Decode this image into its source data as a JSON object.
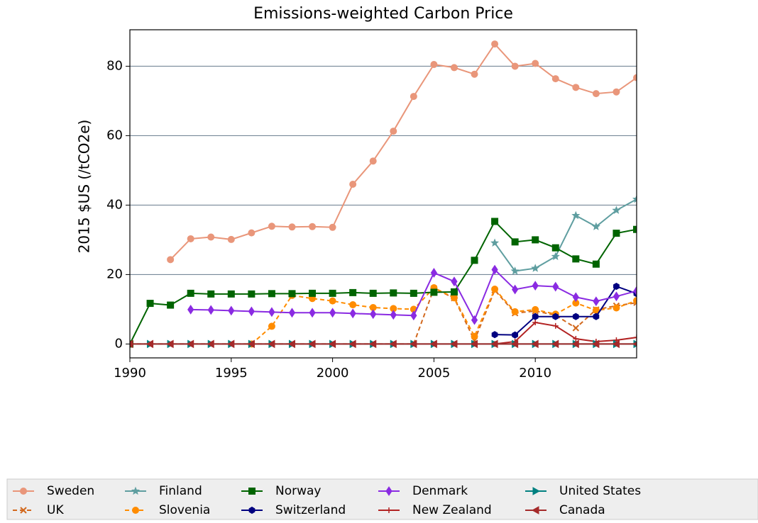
{
  "chart_data": {
    "type": "line",
    "title": "Emissions-weighted Carbon Price",
    "y_label": "2015 $US (/tCO2e)",
    "x": [
      1990,
      1991,
      1992,
      1993,
      1994,
      1995,
      1996,
      1997,
      1998,
      1999,
      2000,
      2001,
      2002,
      2003,
      2004,
      2005,
      2006,
      2007,
      2008,
      2009,
      2010,
      2011,
      2012,
      2013,
      2014,
      2015
    ],
    "xlim": [
      1990,
      2015
    ],
    "xticks": [
      1990,
      1995,
      2000,
      2005,
      2010
    ],
    "ylim": [
      -4,
      90.5
    ],
    "yticks": [
      0,
      20,
      40,
      60,
      80
    ],
    "grid": true,
    "legend": "bottom",
    "series": [
      {
        "name": "Sweden",
        "color": "#e9967a",
        "marker": "circle",
        "dashed": false,
        "values": [
          null,
          null,
          24.3,
          30.3,
          30.8,
          30.1,
          32.0,
          33.9,
          33.7,
          33.8,
          33.6,
          46.0,
          52.7,
          61.3,
          71.3,
          80.5,
          79.6,
          77.7,
          86.4,
          80.0,
          80.8,
          76.4,
          73.9,
          72.1,
          72.6,
          76.7
        ]
      },
      {
        "name": "UK",
        "color": "#d2691e",
        "marker": "x",
        "dashed": true,
        "values": [
          0,
          0,
          0,
          0,
          0,
          0,
          0,
          0,
          0,
          0,
          0,
          0,
          0,
          0,
          0,
          16.0,
          13.2,
          1.0,
          15.5,
          8.9,
          9.5,
          8.3,
          4.6,
          9.9,
          11.0,
          11.9
        ]
      },
      {
        "name": "Finland",
        "color": "#5f9ea0",
        "marker": "star",
        "dashed": false,
        "values": [
          null,
          null,
          null,
          null,
          null,
          null,
          null,
          null,
          null,
          null,
          null,
          null,
          null,
          null,
          null,
          null,
          null,
          null,
          29.1,
          21.0,
          21.8,
          25.2,
          37.0,
          33.8,
          38.5,
          41.7
        ]
      },
      {
        "name": "Slovenia",
        "color": "#ff8c00",
        "marker": "circle",
        "dashed": true,
        "values": [
          null,
          null,
          null,
          null,
          null,
          null,
          0,
          5.1,
          14.0,
          13.1,
          12.4,
          11.3,
          10.5,
          10.2,
          10.0,
          16.2,
          13.3,
          2.2,
          15.8,
          9.3,
          9.9,
          8.6,
          11.8,
          9.7,
          10.4,
          12.5
        ]
      },
      {
        "name": "Norway",
        "color": "#006400",
        "marker": "square",
        "dashed": false,
        "values": [
          0,
          11.7,
          11.2,
          14.6,
          14.4,
          14.4,
          14.4,
          14.5,
          14.5,
          14.6,
          14.6,
          14.8,
          14.6,
          14.7,
          14.6,
          14.9,
          15.0,
          24.1,
          35.3,
          29.4,
          30.0,
          27.7,
          24.5,
          23.0,
          31.9,
          33.0
        ]
      },
      {
        "name": "Switzerland",
        "color": "#000080",
        "marker": "hexagon",
        "dashed": false,
        "values": [
          null,
          null,
          null,
          null,
          null,
          null,
          null,
          null,
          null,
          null,
          null,
          null,
          null,
          null,
          null,
          null,
          null,
          null,
          2.7,
          2.6,
          7.9,
          7.9,
          7.9,
          7.9,
          16.6,
          14.5
        ]
      },
      {
        "name": "Denmark",
        "color": "#8a2be2",
        "marker": "diamond",
        "dashed": false,
        "values": [
          null,
          null,
          null,
          9.9,
          9.8,
          9.6,
          9.4,
          9.2,
          9.0,
          9.0,
          9.0,
          8.8,
          8.6,
          8.4,
          8.2,
          20.5,
          18.0,
          6.9,
          21.4,
          15.7,
          16.8,
          16.5,
          13.5,
          12.3,
          13.7,
          15.3
        ]
      },
      {
        "name": "New Zealand",
        "color": "#b22222",
        "marker": "plus",
        "dashed": false,
        "values": [
          null,
          null,
          null,
          null,
          null,
          null,
          null,
          null,
          null,
          null,
          null,
          null,
          null,
          null,
          null,
          null,
          null,
          null,
          0,
          0.7,
          6.2,
          5.2,
          1.5,
          0.7,
          1.1,
          1.9
        ]
      },
      {
        "name": "United States",
        "color": "#008080",
        "marker": "tri-right",
        "dashed": false,
        "values": [
          0,
          0,
          0,
          0,
          0,
          0,
          0,
          0,
          0,
          0,
          0,
          0,
          0,
          0,
          0,
          0,
          0,
          0,
          0,
          0,
          0,
          0,
          0,
          0,
          0,
          0
        ]
      },
      {
        "name": "Canada",
        "color": "#a52a2a",
        "marker": "tri-left",
        "dashed": false,
        "values": [
          0,
          0,
          0,
          0,
          0,
          0,
          0,
          0,
          0,
          0,
          0,
          0,
          0,
          0,
          0,
          0,
          0,
          0,
          0,
          0,
          0,
          0,
          0,
          0,
          0,
          0
        ]
      }
    ]
  }
}
